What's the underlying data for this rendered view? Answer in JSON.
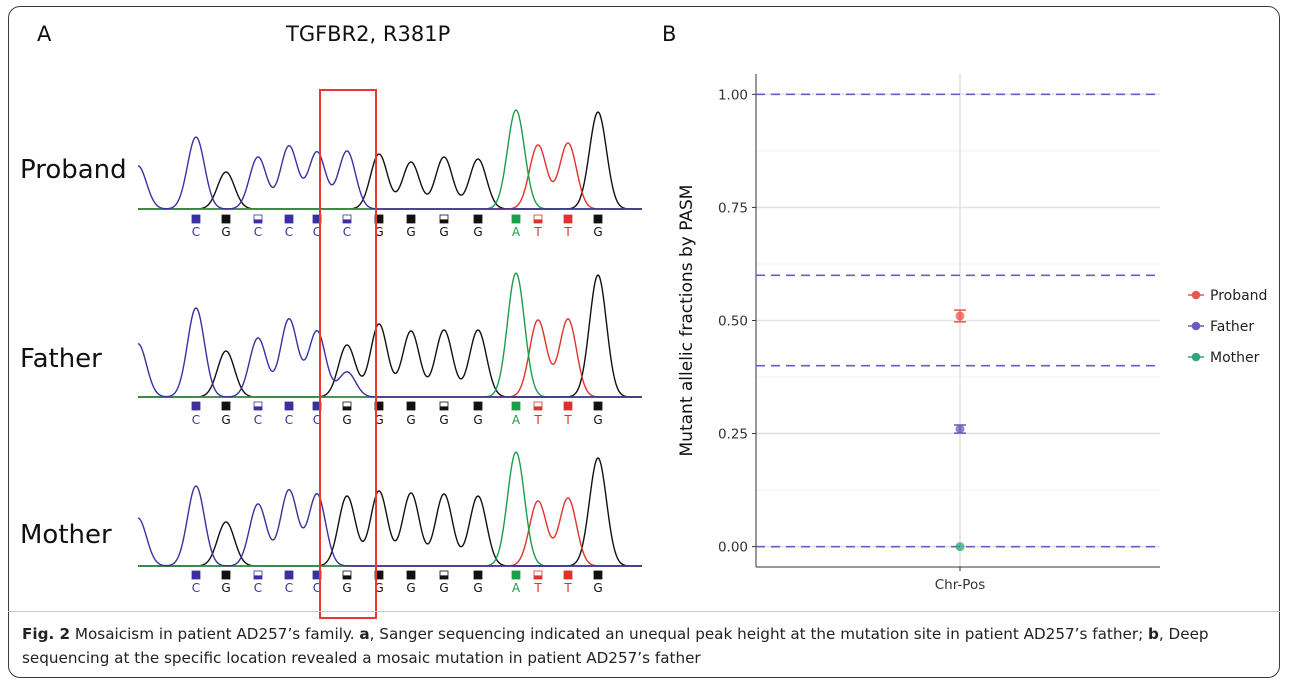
{
  "panel_a": {
    "label": "A",
    "title": "TGFBR2, R381P",
    "rows": [
      {
        "name": "Proband",
        "bases": [
          "C",
          "G",
          "C",
          "C",
          "C",
          "C",
          "G",
          "G",
          "G",
          "G",
          "A",
          "T",
          "T",
          "G"
        ]
      },
      {
        "name": "Father",
        "bases": [
          "C",
          "G",
          "C",
          "C",
          "C",
          "G",
          "G",
          "G",
          "G",
          "G",
          "A",
          "T",
          "T",
          "G"
        ]
      },
      {
        "name": "Mother",
        "bases": [
          "C",
          "G",
          "C",
          "C",
          "C",
          "G",
          "G",
          "G",
          "G",
          "G",
          "A",
          "T",
          "T",
          "G"
        ]
      }
    ],
    "colors": {
      "C": "#3c2fa0",
      "G": "#111111",
      "A": "#1a9e4a",
      "T": "#e0322a",
      "box": "#e8392f"
    }
  },
  "panel_b": {
    "label": "B"
  },
  "chart_data": {
    "type": "scatter",
    "title": "",
    "xlabel": "",
    "ylabel": "Mutant allelic fractions by PASM",
    "x_categories": [
      "Chr-Pos"
    ],
    "ylim": [
      -0.045,
      1.045
    ],
    "yticks": [
      "0.00",
      "0.25",
      "0.50",
      "0.75",
      "1.00"
    ],
    "grid": true,
    "legend_position": "right",
    "series": [
      {
        "name": "Proband",
        "color": "#e8584b",
        "x": "Chr-Pos",
        "y": 0.51,
        "err": 0.013
      },
      {
        "name": "Father",
        "color": "#6a5cb8",
        "x": "Chr-Pos",
        "y": 0.26,
        "err": 0.009
      },
      {
        "name": "Mother",
        "color": "#2ea676",
        "x": "Chr-Pos",
        "y": 0.0,
        "err": 0.0
      }
    ],
    "reference_lines": {
      "values": [
        0.0,
        0.4,
        0.6,
        1.0
      ],
      "color": "#6a5cc8",
      "style": "dashed"
    }
  },
  "caption": {
    "fig_label": "Fig. 2",
    "text1": " Mosaicism in patient AD257’s family. ",
    "a": "a",
    "text2": ", Sanger sequencing indicated an unequal peak height at the mutation site in patient AD257’s father; ",
    "b": "b",
    "text3": ", Deep sequencing at the specific location revealed a mosaic mutation in patient AD257’s father"
  }
}
